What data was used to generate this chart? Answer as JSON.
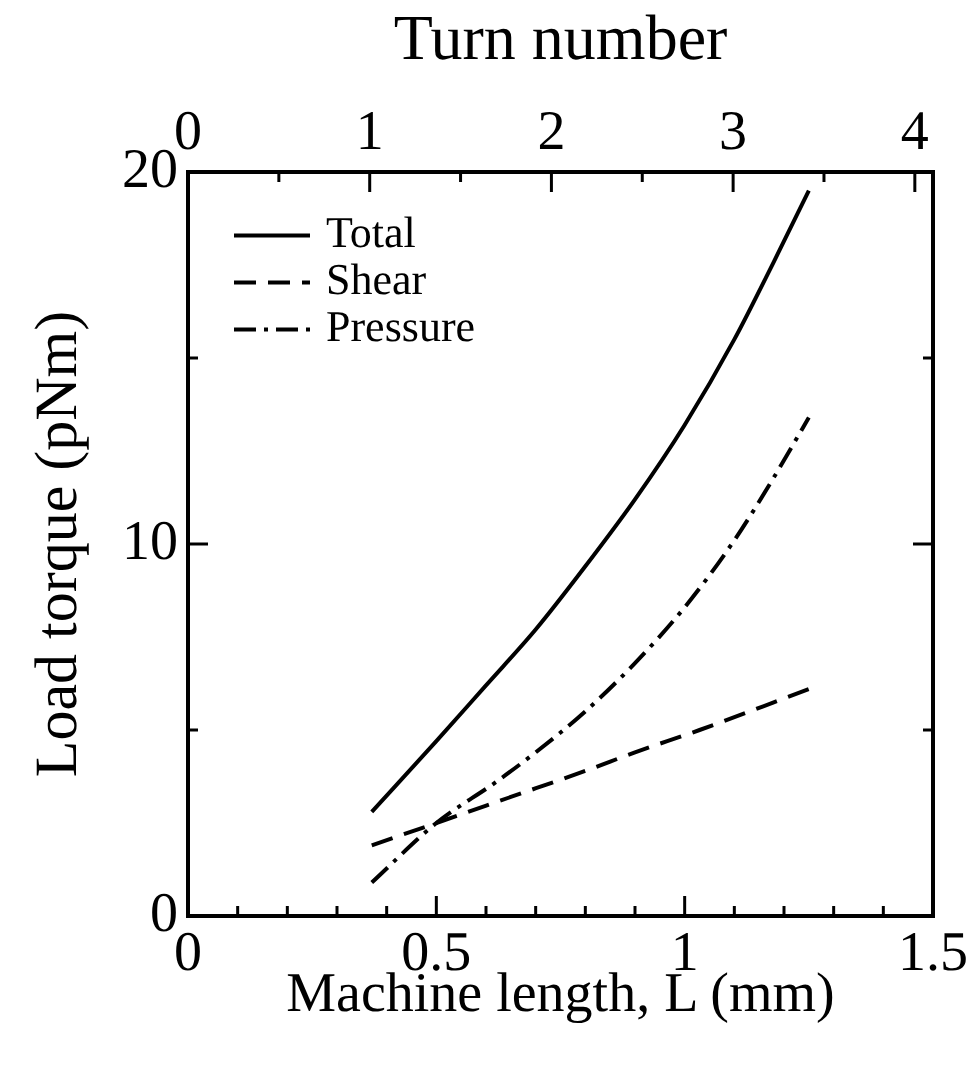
{
  "chart_data": {
    "type": "line",
    "xlabel": "Machine length, L (mm)",
    "x2label": "Turn number",
    "ylabel": "Load torque (pNm)",
    "xlim": [
      0,
      1.5
    ],
    "xticks": [
      0,
      {
        "value": 0.1,
        "label": null
      },
      {
        "value": 0.2,
        "label": null
      },
      {
        "value": 0.3,
        "label": null
      },
      {
        "value": 0.4,
        "label": null
      },
      0.5,
      {
        "value": 0.6,
        "label": null
      },
      {
        "value": 0.7,
        "label": null
      },
      {
        "value": 0.8,
        "label": null
      },
      {
        "value": 0.9,
        "label": null
      },
      1,
      {
        "value": 1.1,
        "label": null
      },
      {
        "value": 1.2,
        "label": null
      },
      {
        "value": 1.3,
        "label": null
      },
      {
        "value": 1.4,
        "label": null
      },
      1.5
    ],
    "x2lim": [
      0,
      4.1
    ],
    "x2ticks": [
      0,
      {
        "value": 0.5,
        "label": null
      },
      1,
      {
        "value": 1.5,
        "label": null
      },
      2,
      {
        "value": 2.5,
        "label": null
      },
      3,
      {
        "value": 3.5,
        "label": null
      },
      4
    ],
    "ylim": [
      0,
      20
    ],
    "yticks": [
      0,
      {
        "value": 5,
        "label": null
      },
      10,
      {
        "value": 15,
        "label": null
      },
      20
    ],
    "grid": false,
    "legend": "top left",
    "marker": "none",
    "series": [
      {
        "name": "Total",
        "color": "#000000",
        "line_style": "solid",
        "x": [
          0.37,
          0.5,
          0.6,
          0.7,
          0.8,
          0.9,
          1.0,
          1.1,
          1.18,
          1.25
        ],
        "values": [
          2.8,
          4.7,
          6.2,
          7.7,
          9.4,
          11.2,
          13.2,
          15.5,
          17.6,
          19.5
        ]
      },
      {
        "name": "Shear",
        "color": "#000000",
        "line_style": "dashed",
        "x": [
          0.37,
          0.5,
          0.65,
          0.8,
          0.9,
          1.03,
          1.25
        ],
        "values": [
          1.9,
          2.5,
          3.2,
          3.9,
          4.4,
          5.0,
          6.1
        ]
      },
      {
        "name": "Pressure",
        "color": "#000000",
        "line_style": "dashdot",
        "x": [
          0.37,
          0.5,
          0.62,
          0.7,
          0.8,
          0.9,
          1.0,
          1.1,
          1.18,
          1.25
        ],
        "values": [
          0.9,
          2.5,
          3.6,
          4.4,
          5.5,
          6.8,
          8.3,
          10.1,
          11.8,
          13.4
        ]
      }
    ]
  }
}
